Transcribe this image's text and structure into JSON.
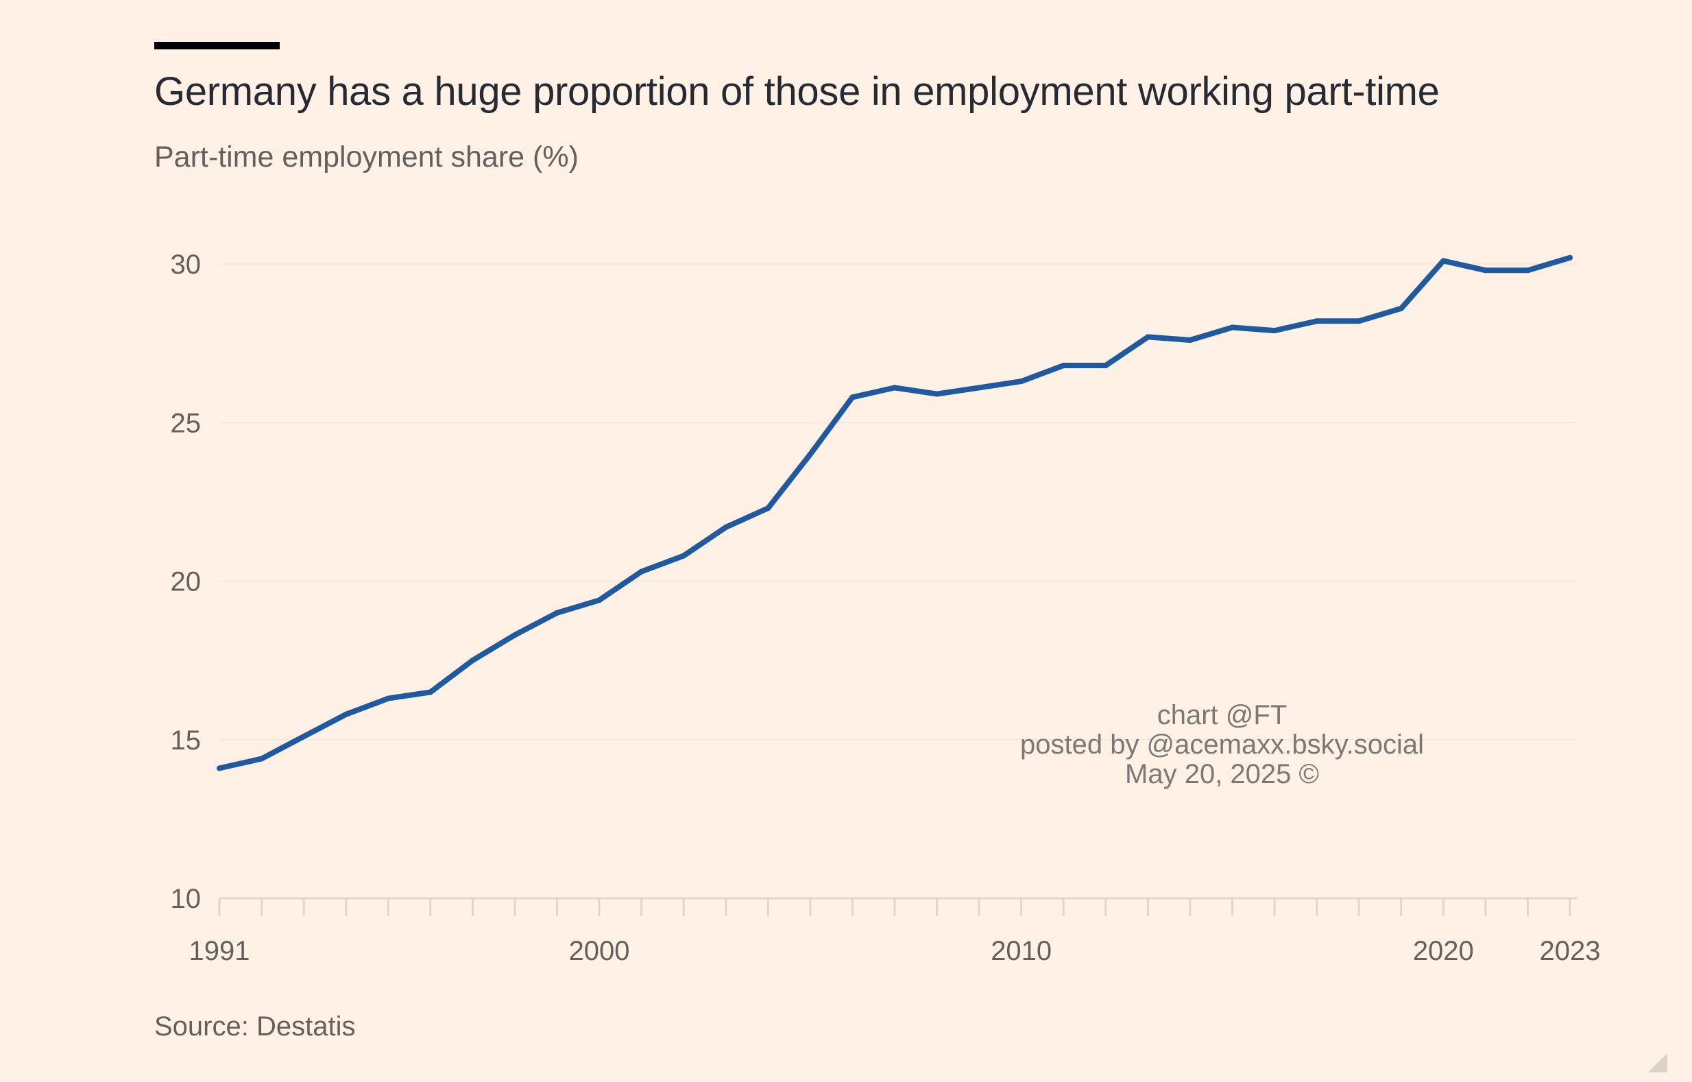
{
  "chart_data": {
    "type": "line",
    "title": "Germany has a huge proportion of those in employment working part-time",
    "subtitle": "Part-time employment share (%)",
    "source": "Source: Destatis",
    "xlim": [
      1991,
      2023
    ],
    "ylim": [
      10,
      30
    ],
    "yticks": [
      10,
      15,
      20,
      25,
      30
    ],
    "xtick_labels": [
      1991,
      2000,
      2010,
      2020,
      2023
    ],
    "grid": "horizontal",
    "line_color": "#1f5aa0",
    "series": [
      {
        "x": [
          1991,
          1992,
          1993,
          1994,
          1995,
          1996,
          1997,
          1998,
          1999,
          2000,
          2001,
          2002,
          2003,
          2004,
          2005,
          2006,
          2007,
          2008,
          2009,
          2010,
          2011,
          2012,
          2013,
          2014,
          2015,
          2016,
          2017,
          2018,
          2019,
          2020,
          2021,
          2022,
          2023
        ],
        "values": [
          14.1,
          14.4,
          15.1,
          15.8,
          16.3,
          16.5,
          17.5,
          18.3,
          19.0,
          19.4,
          20.3,
          20.8,
          21.7,
          22.3,
          24.0,
          25.8,
          26.1,
          25.9,
          26.1,
          26.3,
          26.8,
          26.8,
          27.7,
          27.6,
          28.0,
          27.9,
          28.2,
          28.2,
          28.6,
          30.1,
          29.8,
          29.8,
          30.2
        ]
      }
    ]
  },
  "watermark": {
    "line1": "chart @FT",
    "line2": "posted by @acemaxx.bsky.social",
    "line3": "May 20, 2025 ©"
  }
}
